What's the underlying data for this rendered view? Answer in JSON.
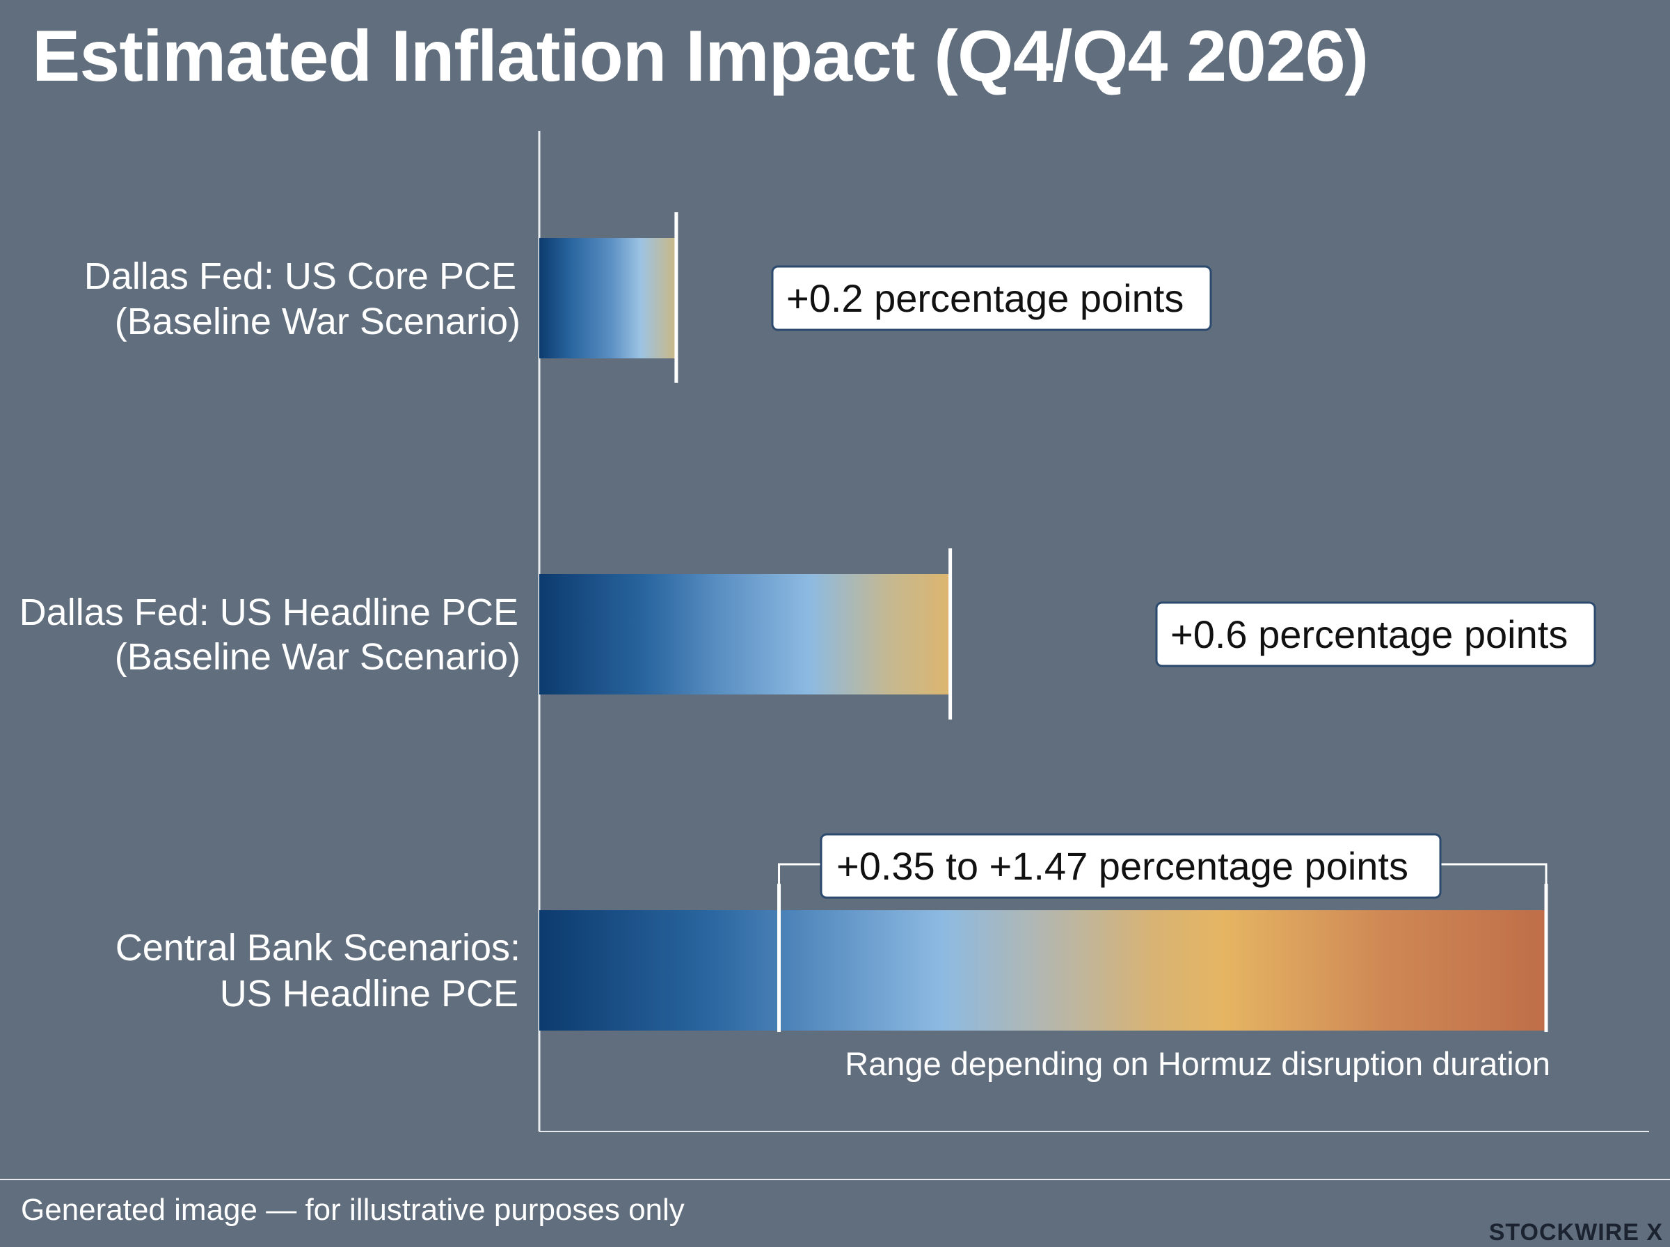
{
  "title": "Estimated Inflation Impact (Q4/Q4 2026)",
  "footer": {
    "disclaimer": "Generated image — for illustrative purposes only",
    "brand": "STOCKWIRE X"
  },
  "colors": {
    "background": "#616e7d",
    "gradient": [
      "#0c3b6e",
      "#2a66a0",
      "#8dbae2",
      "#e5b563",
      "#bf6e48"
    ]
  },
  "chart_data": {
    "type": "bar",
    "orientation": "horizontal",
    "unit": "percentage points",
    "categories": [
      [
        "Dallas Fed: US Core PCE",
        "(Baseline War Scenario)"
      ],
      [
        "Dallas Fed: US Headline PCE",
        "(Baseline War Scenario)"
      ],
      [
        "Central Bank Scenarios:",
        "US Headline PCE"
      ]
    ],
    "values": [
      0.2,
      0.6,
      [
        0.35,
        1.47
      ]
    ],
    "data_labels": [
      "+0.2 percentage points",
      "+0.6 percentage points",
      "+0.35 to +1.47 percentage points"
    ],
    "annotations": [
      "Range depending on Hormuz disruption duration"
    ],
    "xlim": [
      0,
      1.47
    ],
    "grid": false,
    "legend": "none"
  }
}
